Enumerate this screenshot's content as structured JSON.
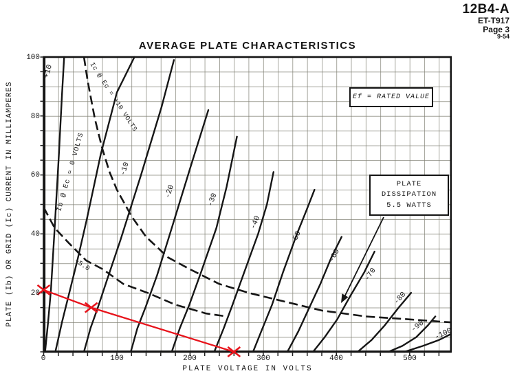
{
  "header": {
    "model": "12B4-A",
    "doc_number": "ET-T917",
    "page": "Page 3",
    "date": "9-54"
  },
  "chart_data": {
    "type": "line",
    "title": "AVERAGE PLATE CHARACTERISTICS",
    "x_axis": {
      "label": "PLATE VOLTAGE IN VOLTS",
      "min": 0,
      "max": 556,
      "ticks": [
        0,
        100,
        200,
        300,
        400,
        500
      ],
      "tick_labels": [
        "0",
        "100",
        "200",
        "300",
        "400",
        "500"
      ],
      "grid_step": 20
    },
    "y_axis": {
      "label": "PLATE (Ib) OR GRID (Ic) CURRENT IN MILLIAMPERES",
      "min": 0,
      "max": 100,
      "ticks": [
        0,
        20,
        40,
        60,
        80,
        100
      ],
      "tick_labels_top_down": [
        "100",
        "80",
        "60",
        "40",
        "20"
      ],
      "grid_step": 5
    },
    "grid": "on",
    "series": [
      {
        "label": "+10",
        "style": "solid",
        "quantity": "plate current, grid volts = +10",
        "points": [
          [
            2,
            0
          ],
          [
            6,
            10
          ],
          [
            10,
            21
          ],
          [
            15,
            42
          ],
          [
            21,
            68
          ],
          [
            25,
            87
          ],
          [
            28,
            100
          ]
        ]
      },
      {
        "label": "Ib @ Ec = 0 VOLTS",
        "style": "solid",
        "quantity": "plate current, grid volts = 0",
        "points": [
          [
            16,
            0
          ],
          [
            25,
            10
          ],
          [
            34,
            19
          ],
          [
            46,
            31
          ],
          [
            59,
            45
          ],
          [
            78,
            67
          ],
          [
            100,
            88
          ],
          [
            124,
            100
          ]
        ]
      },
      {
        "label": "-10",
        "style": "solid",
        "quantity": "plate current, grid volts = -10",
        "points": [
          [
            55,
            0
          ],
          [
            64,
            8
          ],
          [
            74,
            15
          ],
          [
            86,
            24
          ],
          [
            105,
            38
          ],
          [
            133,
            60
          ],
          [
            161,
            83
          ],
          [
            178,
            99
          ]
        ]
      },
      {
        "label": "-20",
        "style": "solid",
        "quantity": "plate current, grid volts = -20",
        "points": [
          [
            119,
            0
          ],
          [
            128,
            8
          ],
          [
            139,
            15
          ],
          [
            155,
            26
          ],
          [
            175,
            42
          ],
          [
            201,
            63
          ],
          [
            225,
            82
          ]
        ]
      },
      {
        "label": "-30",
        "style": "solid",
        "quantity": "plate current, grid volts = -30",
        "points": [
          [
            175,
            0
          ],
          [
            186,
            8
          ],
          [
            199,
            16
          ],
          [
            215,
            27
          ],
          [
            236,
            42
          ],
          [
            250,
            56
          ],
          [
            264,
            73
          ]
        ]
      },
      {
        "label": "-40",
        "style": "solid",
        "quantity": "plate current, grid volts = -40",
        "points": [
          [
            233,
            0
          ],
          [
            246,
            8
          ],
          [
            258,
            16
          ],
          [
            274,
            27
          ],
          [
            293,
            40
          ],
          [
            305,
            50
          ],
          [
            314,
            61
          ]
        ]
      },
      {
        "label": "-50",
        "style": "solid",
        "quantity": "plate current, grid volts = -50",
        "points": [
          [
            286,
            0
          ],
          [
            299,
            8
          ],
          [
            312,
            16
          ],
          [
            327,
            27
          ],
          [
            346,
            40
          ],
          [
            359,
            48
          ],
          [
            370,
            55
          ]
        ]
      },
      {
        "label": "-60",
        "style": "solid",
        "quantity": "plate current, grid volts = -60",
        "points": [
          [
            333,
            0
          ],
          [
            348,
            7
          ],
          [
            363,
            15
          ],
          [
            378,
            23
          ],
          [
            393,
            32
          ],
          [
            407,
            39
          ]
        ]
      },
      {
        "label": "-70",
        "style": "solid",
        "quantity": "plate current, grid volts = -70",
        "points": [
          [
            368,
            0
          ],
          [
            384,
            5
          ],
          [
            401,
            11
          ],
          [
            419,
            19
          ],
          [
            438,
            27
          ],
          [
            452,
            34
          ]
        ]
      },
      {
        "label": "-80",
        "style": "solid",
        "quantity": "plate current, grid volts = -80",
        "points": [
          [
            429,
            0
          ],
          [
            448,
            4
          ],
          [
            466,
            9
          ],
          [
            485,
            15
          ],
          [
            502,
            20
          ]
        ]
      },
      {
        "label": "-90",
        "style": "solid",
        "quantity": "plate current, grid volts = -90",
        "points": [
          [
            471,
            0
          ],
          [
            490,
            2
          ],
          [
            509,
            5
          ],
          [
            525,
            9
          ],
          [
            535,
            12
          ]
        ]
      },
      {
        "label": "-100",
        "style": "solid",
        "quantity": "plate current, grid volts = -100",
        "points": [
          [
            493,
            0
          ],
          [
            518,
            2
          ],
          [
            540,
            4
          ],
          [
            556,
            6
          ]
        ]
      },
      {
        "label": "Ic @ Ec = +10 VOLTS",
        "style": "dashed",
        "quantity": "dashed boundary curve (5.5 W hyperbola)",
        "points": [
          [
            55,
            100
          ],
          [
            60,
            92
          ],
          [
            70,
            79
          ],
          [
            80,
            69
          ],
          [
            90,
            61
          ],
          [
            100,
            55
          ],
          [
            120,
            46
          ],
          [
            140,
            39
          ],
          [
            170,
            32
          ],
          [
            200,
            28
          ],
          [
            240,
            23
          ],
          [
            280,
            20
          ],
          [
            330,
            17
          ],
          [
            380,
            14
          ],
          [
            440,
            12
          ],
          [
            500,
            11
          ],
          [
            556,
            10
          ]
        ]
      },
      {
        "label": "+5.0",
        "style": "dashed",
        "quantity": "grid current, grid volts = +5.0",
        "points": [
          [
            0,
            49
          ],
          [
            15,
            42
          ],
          [
            34,
            37
          ],
          [
            58,
            31
          ],
          [
            81,
            28
          ],
          [
            109,
            23
          ],
          [
            142,
            20
          ],
          [
            180,
            16
          ],
          [
            222,
            13
          ],
          [
            250,
            12
          ]
        ]
      }
    ],
    "load_line": {
      "color": "#e8131b",
      "marker": "x",
      "points": [
        [
          0,
          21
        ],
        [
          65,
          15
        ],
        [
          260,
          0
        ]
      ]
    },
    "annotations": {
      "ef_note": "Ef = RATED VALUE",
      "dissipation_box": {
        "line1": "PLATE",
        "line2": "DISSIPATION",
        "line3": "5.5 WATTS"
      }
    }
  }
}
